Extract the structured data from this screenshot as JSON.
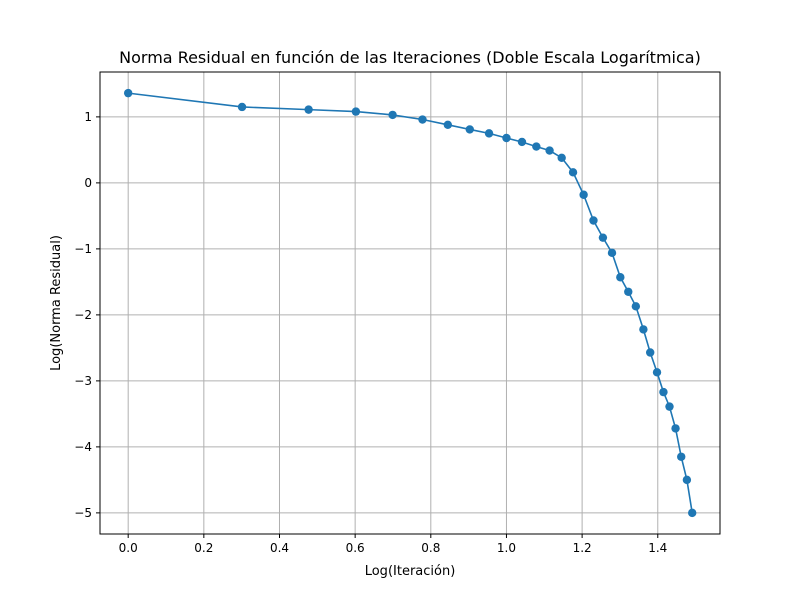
{
  "chart_data": {
    "type": "line",
    "title": "Norma Residual en función de las Iteraciones (Doble Escala Logarítmica)",
    "xlabel": "Log(Iteración)",
    "ylabel": "Log(Norma Residual)",
    "xlim": [
      -0.0745,
      1.5645
    ],
    "ylim": [
      -5.32,
      1.68
    ],
    "xticks": [
      0.0,
      0.2,
      0.4,
      0.6,
      0.8,
      1.0,
      1.2,
      1.4
    ],
    "xtick_labels": [
      "0.0",
      "0.2",
      "0.4",
      "0.6",
      "0.8",
      "1.0",
      "1.2",
      "1.4"
    ],
    "yticks": [
      1,
      0,
      -1,
      -2,
      -3,
      -4,
      -5
    ],
    "ytick_labels": [
      "1",
      "0",
      "−1",
      "−2",
      "−3",
      "−4",
      "−5"
    ],
    "grid": true,
    "line_color": "#1f77b4",
    "markers": "circle",
    "x": [
      0.0,
      0.301,
      0.477,
      0.602,
      0.699,
      0.778,
      0.845,
      0.903,
      0.954,
      1.0,
      1.041,
      1.079,
      1.114,
      1.146,
      1.176,
      1.204,
      1.23,
      1.255,
      1.279,
      1.301,
      1.322,
      1.342,
      1.362,
      1.38,
      1.398,
      1.415,
      1.431,
      1.447,
      1.462,
      1.477,
      1.491
    ],
    "y": [
      1.36,
      1.15,
      1.11,
      1.08,
      1.03,
      0.96,
      0.88,
      0.81,
      0.75,
      0.68,
      0.62,
      0.55,
      0.49,
      0.38,
      0.16,
      -0.18,
      -0.57,
      -0.83,
      -1.06,
      -1.43,
      -1.65,
      -1.87,
      -2.22,
      -2.57,
      -2.87,
      -3.17,
      -3.39,
      -3.72,
      -4.15,
      -4.5,
      -5.0
    ]
  }
}
